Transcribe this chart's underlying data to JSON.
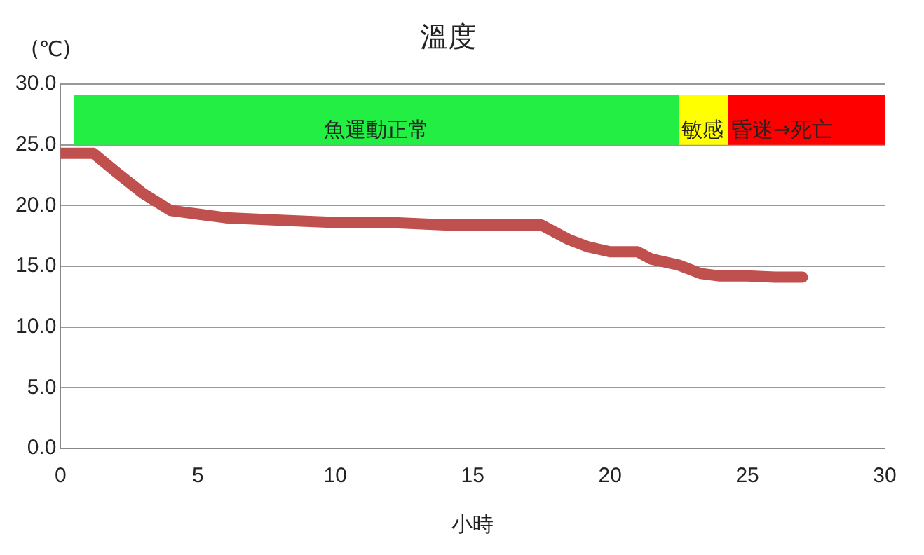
{
  "chart_data": {
    "type": "line",
    "title": "溫度",
    "xlabel": "小時",
    "ylabel": "(℃)",
    "x": [
      0,
      1.2,
      2,
      3,
      4,
      5,
      6,
      8,
      10,
      12,
      14,
      16,
      17.5,
      18.5,
      19.2,
      20,
      21,
      21.5,
      22.5,
      23.3,
      24,
      25,
      26,
      27
    ],
    "series": [
      {
        "color": "#c0504d",
        "values": [
          24.3,
          24.3,
          22.8,
          21,
          19.6,
          19.3,
          19,
          18.8,
          18.6,
          18.6,
          18.4,
          18.4,
          18.4,
          17.2,
          16.6,
          16.2,
          16.2,
          15.6,
          15.1,
          14.4,
          14.2,
          14.2,
          14.1,
          14.1
        ]
      }
    ],
    "xlim": [
      0,
      30
    ],
    "xticks": [
      0,
      5,
      10,
      15,
      20,
      25,
      30
    ],
    "ylim": [
      0,
      30
    ],
    "yticks": [
      {
        "value": 0,
        "label": "0.0"
      },
      {
        "value": 5,
        "label": "5.0"
      },
      {
        "value": 10,
        "label": "10.0"
      },
      {
        "value": 15,
        "label": "15.0"
      },
      {
        "value": 20,
        "label": "20.0"
      },
      {
        "value": 25,
        "label": "25.0"
      },
      {
        "value": 30,
        "label": "30.0"
      }
    ],
    "grid": "y",
    "legend": false,
    "marker": "none",
    "line_style": "solid",
    "bands": [
      {
        "axis": "x",
        "from": 0.5,
        "to": 22.5,
        "label": "魚運動正常",
        "color": "#22ee44"
      },
      {
        "axis": "x",
        "from": 22.5,
        "to": 24.3,
        "label": "敏感",
        "color": "#ffff00"
      },
      {
        "axis": "x",
        "from": 24.3,
        "to": 30,
        "label": "昏迷→死亡",
        "color": "#ff0000"
      }
    ]
  }
}
